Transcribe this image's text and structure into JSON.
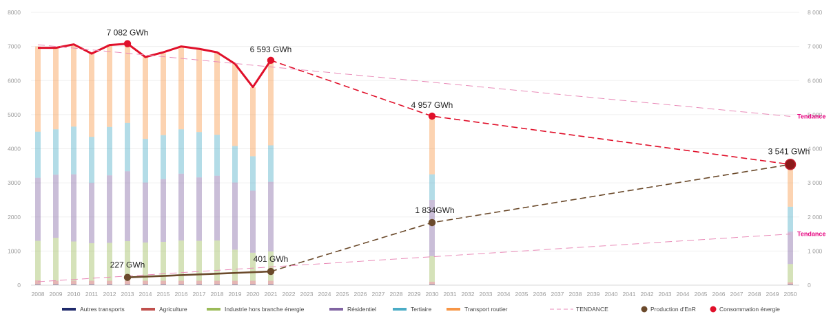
{
  "chart_data": {
    "type": "bar",
    "stacked": true,
    "years": [
      2008,
      2009,
      2010,
      2011,
      2012,
      2013,
      2014,
      2015,
      2016,
      2017,
      2018,
      2019,
      2020,
      2021,
      2022,
      2023,
      2024,
      2025,
      2026,
      2027,
      2028,
      2029,
      2030,
      2031,
      2032,
      2033,
      2034,
      2035,
      2036,
      2037,
      2038,
      2039,
      2040,
      2041,
      2042,
      2043,
      2044,
      2045,
      2046,
      2047,
      2048,
      2049,
      2050
    ],
    "ylim": [
      0,
      8000
    ],
    "yticks_left": [
      "0",
      "1000",
      "2000",
      "3000",
      "4000",
      "5000",
      "6000",
      "7000",
      "8000"
    ],
    "yticks_right": [
      "0",
      "1 000",
      "2 000",
      "3 000",
      "4 000",
      "5 000",
      "6 000",
      "7 000",
      "8 000"
    ],
    "stack_series": [
      {
        "name": "Autres transports",
        "color": "#1f2a6b"
      },
      {
        "name": "Agriculture",
        "color": "#c0504d"
      },
      {
        "name": "Industrie hors branche énergie",
        "color": "#9bbb59"
      },
      {
        "name": "Résidentiel",
        "color": "#8064a2"
      },
      {
        "name": "Tertiaire",
        "color": "#4bacc6"
      },
      {
        "name": "Transport routier",
        "color": "#f79646"
      }
    ],
    "bars": [
      {
        "year": 2008,
        "values": [
          20,
          120,
          1160,
          1850,
          1350,
          2500
        ]
      },
      {
        "year": 2009,
        "values": [
          20,
          110,
          1260,
          1850,
          1330,
          2400
        ]
      },
      {
        "year": 2010,
        "values": [
          20,
          110,
          1150,
          1970,
          1400,
          2400
        ]
      },
      {
        "year": 2011,
        "values": [
          20,
          110,
          1100,
          1770,
          1350,
          2450
        ]
      },
      {
        "year": 2012,
        "values": [
          20,
          110,
          1110,
          1980,
          1420,
          2420
        ]
      },
      {
        "year": 2013,
        "values": [
          20,
          110,
          1160,
          2050,
          1420,
          2300
        ]
      },
      {
        "year": 2014,
        "values": [
          20,
          110,
          1120,
          1760,
          1280,
          2400
        ]
      },
      {
        "year": 2015,
        "values": [
          20,
          110,
          1140,
          1840,
          1290,
          2400
        ]
      },
      {
        "year": 2016,
        "values": [
          20,
          110,
          1180,
          1960,
          1300,
          2430
        ]
      },
      {
        "year": 2017,
        "values": [
          20,
          110,
          1170,
          1860,
          1330,
          2450
        ]
      },
      {
        "year": 2018,
        "values": [
          20,
          110,
          1180,
          1900,
          1200,
          2430
        ]
      },
      {
        "year": 2019,
        "values": [
          20,
          110,
          910,
          1970,
          1070,
          2420
        ]
      },
      {
        "year": 2020,
        "values": [
          20,
          110,
          820,
          1820,
          1010,
          2020
        ]
      },
      {
        "year": 2021,
        "values": [
          20,
          110,
          860,
          2040,
          1070,
          2450
        ]
      },
      {
        "year": 2030,
        "values": [
          20,
          80,
          750,
          1650,
          750,
          1700
        ]
      },
      {
        "year": 2050,
        "values": [
          20,
          60,
          540,
          950,
          730,
          1230
        ]
      }
    ],
    "lines": [
      {
        "name": "Consommation énergie",
        "color": "#e0102a",
        "style": "solid",
        "points": [
          [
            2008,
            6960
          ],
          [
            2009,
            6960
          ],
          [
            2010,
            7060
          ],
          [
            2011,
            6790
          ],
          [
            2012,
            7040
          ],
          [
            2013,
            7082
          ],
          [
            2014,
            6690
          ],
          [
            2015,
            6830
          ],
          [
            2016,
            7000
          ],
          [
            2017,
            6930
          ],
          [
            2018,
            6830
          ],
          [
            2019,
            6490
          ],
          [
            2020,
            5810
          ],
          [
            2021,
            6593
          ]
        ]
      },
      {
        "name": "Consommation énergie (projection)",
        "color": "#e0102a",
        "style": "dashed",
        "points": [
          [
            2021,
            6593
          ],
          [
            2030,
            4957
          ],
          [
            2050,
            3541
          ]
        ]
      },
      {
        "name": "Production d'EnR",
        "color": "#6b4a2b",
        "style": "solid",
        "points": [
          [
            2013,
            227
          ],
          [
            2021,
            401
          ]
        ]
      },
      {
        "name": "Production d'EnR (projection)",
        "color": "#6b4a2b",
        "style": "dashed",
        "points": [
          [
            2021,
            401
          ],
          [
            2030,
            1834
          ],
          [
            2050,
            3541
          ]
        ]
      },
      {
        "name": "TENDANCE",
        "color": "#e98bb8",
        "style": "dashed-thin",
        "points": [
          [
            2008,
            7050
          ],
          [
            2050,
            4950
          ]
        ]
      },
      {
        "name": "TENDANCE",
        "color": "#e98bb8",
        "style": "dashed-thin",
        "points": [
          [
            2008,
            100
          ],
          [
            2050,
            1500
          ]
        ]
      }
    ],
    "markers": [
      {
        "series": "Consommation énergie",
        "year": 2013,
        "value": 7082,
        "label": "7 082 GWh",
        "color": "#e0102a"
      },
      {
        "series": "Consommation énergie",
        "year": 2021,
        "value": 6593,
        "label": "6 593 GWh",
        "color": "#e0102a"
      },
      {
        "series": "Consommation énergie",
        "year": 2030,
        "value": 4957,
        "label": "4 957 GWh",
        "color": "#e0102a"
      },
      {
        "series": "Production d'EnR",
        "year": 2013,
        "value": 227,
        "label": "227 GWh",
        "color": "#6b4a2b"
      },
      {
        "series": "Production d'EnR",
        "year": 2021,
        "value": 401,
        "label": "401 GWh",
        "color": "#6b4a2b"
      },
      {
        "series": "Production d'EnR",
        "year": 2030,
        "value": 1834,
        "label": "1 834GWh",
        "color": "#6b4a2b"
      },
      {
        "series": "Consommation énergie",
        "year": 2050,
        "value": 3541,
        "label": "3 541 GWh",
        "color": "#8b1a1a",
        "big": true
      }
    ],
    "trend_labels": [
      {
        "text": "Tendance",
        "value": 4950
      },
      {
        "text": "Tendance",
        "value": 1500
      }
    ],
    "legend": [
      {
        "text": "Autres transports",
        "color": "#1f2a6b",
        "kind": "bar"
      },
      {
        "text": "Agriculture",
        "color": "#c0504d",
        "kind": "bar"
      },
      {
        "text": "Industrie hors branche énergie",
        "color": "#9bbb59",
        "kind": "bar"
      },
      {
        "text": "Résidentiel",
        "color": "#8064a2",
        "kind": "bar"
      },
      {
        "text": "Tertiaire",
        "color": "#4bacc6",
        "kind": "bar"
      },
      {
        "text": "Transport routier",
        "color": "#f79646",
        "kind": "bar"
      },
      {
        "text": "TENDANCE",
        "color": "#e98bb8",
        "kind": "dash"
      },
      {
        "text": "Production d'EnR",
        "color": "#6b4a2b",
        "kind": "dot"
      },
      {
        "text": "Consommation énergie",
        "color": "#e0102a",
        "kind": "dot"
      }
    ],
    "grid": true
  }
}
